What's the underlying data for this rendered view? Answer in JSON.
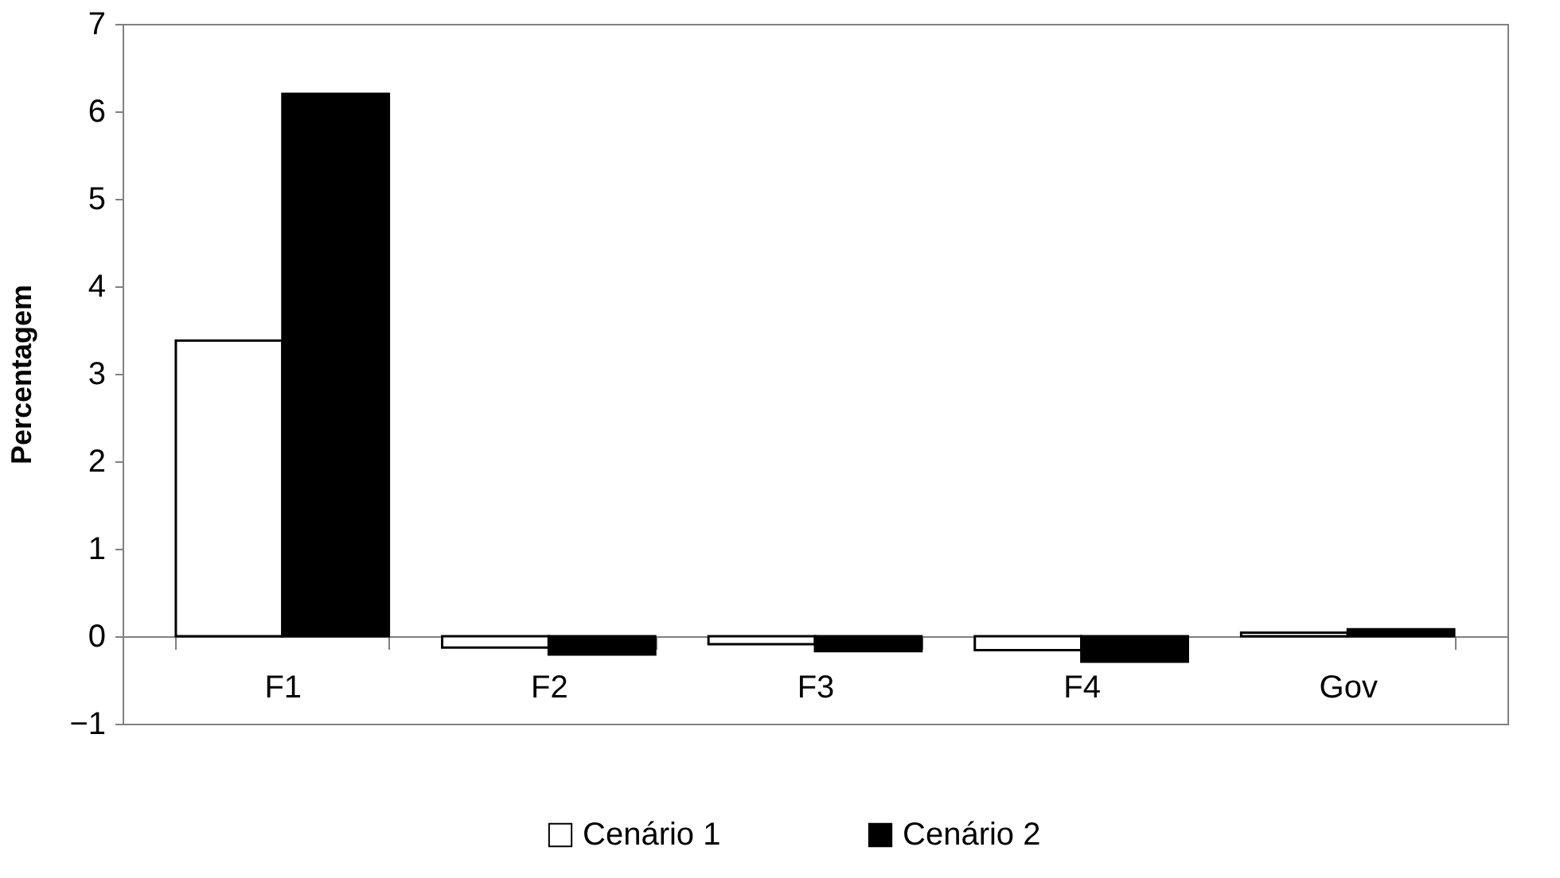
{
  "chart_data": {
    "type": "bar",
    "ylabel": "Percentagem",
    "categories": [
      "F1",
      "F2",
      "F3",
      "F4",
      "Gov"
    ],
    "series": [
      {
        "name": "Cenário 1",
        "color": "#ffffff",
        "values": [
          3.38,
          -0.13,
          -0.09,
          -0.16,
          0.04
        ]
      },
      {
        "name": "Cenário 2",
        "color": "#000000",
        "values": [
          6.2,
          -0.21,
          -0.17,
          -0.29,
          0.08
        ]
      }
    ],
    "ylim": [
      -1,
      7
    ],
    "yticks": [
      -1,
      0,
      1,
      2,
      3,
      4,
      5,
      6,
      7
    ],
    "legend": "bottom"
  }
}
